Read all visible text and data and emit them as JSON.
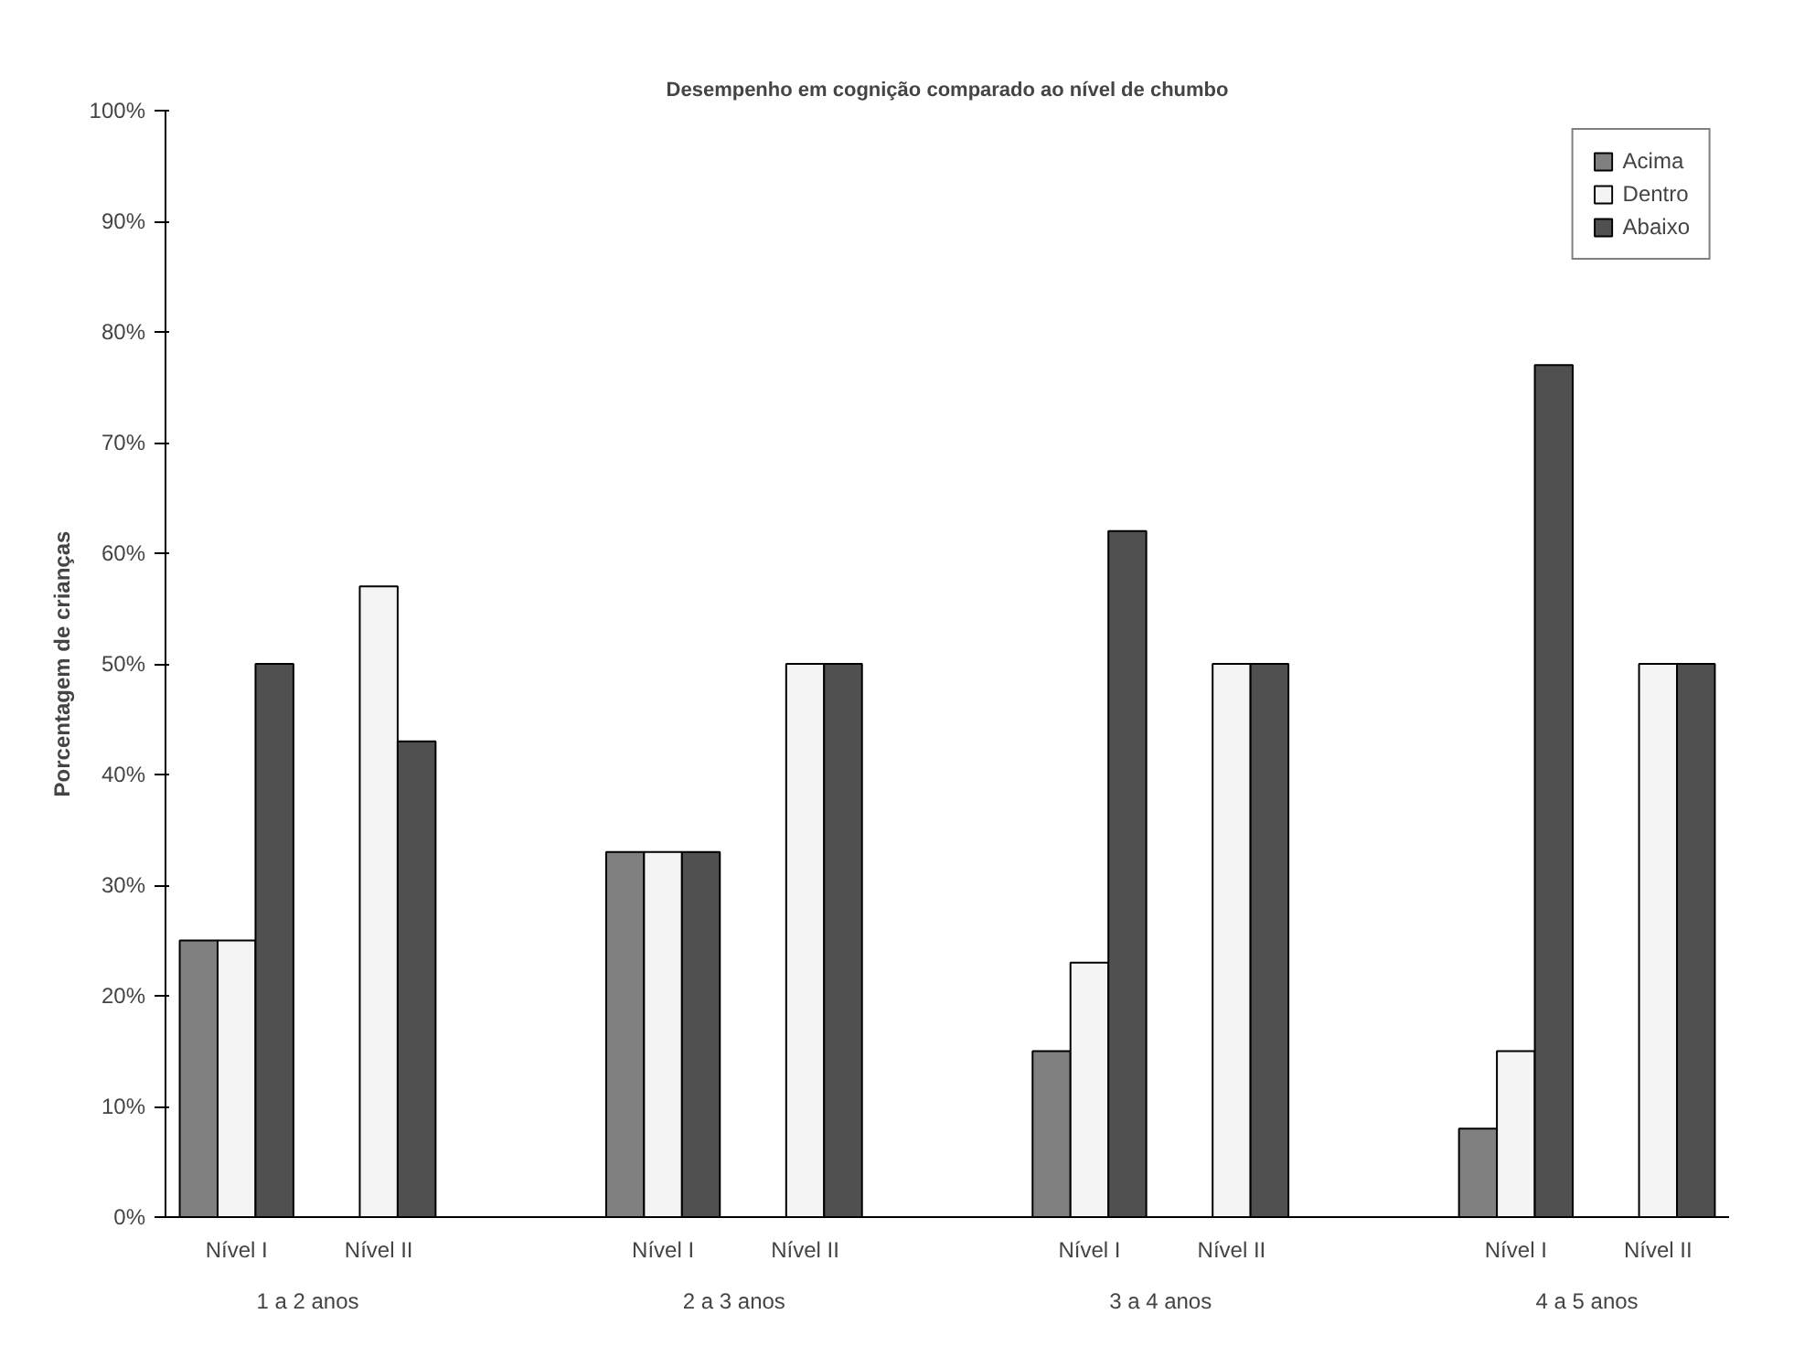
{
  "chart_data": {
    "type": "bar",
    "title": "Desempenho em cognição comparado ao nível de chumbo",
    "ylabel": "Porcentagem de crianças",
    "categories": [
      "Nível I",
      "Nível II",
      null,
      "Nível I",
      "Nível II",
      null,
      "Nível I",
      "Nível II",
      null,
      "Nível I",
      "Nível II"
    ],
    "series": [
      {
        "name": "Acima",
        "color": "#808080",
        "values": [
          25,
          0,
          null,
          33,
          0,
          null,
          15,
          0,
          null,
          8,
          0
        ]
      },
      {
        "name": "Dentro",
        "color": "#f4f4f4",
        "values": [
          25,
          57,
          null,
          33,
          50,
          null,
          23,
          50,
          null,
          15,
          50
        ]
      },
      {
        "name": "Abaixo",
        "color": "#505050",
        "values": [
          50,
          43,
          null,
          33,
          50,
          null,
          62,
          50,
          null,
          77,
          50
        ]
      }
    ],
    "annotations": [
      "1 a 2 anos",
      "2 a 3 anos",
      "3 a 4 anos",
      "4 a 5 anos"
    ],
    "ylim": [
      0,
      100
    ],
    "yticks": [
      {
        "value": 0,
        "label": "0%"
      },
      {
        "value": 10,
        "label": "10%"
      },
      {
        "value": 20,
        "label": "20%"
      },
      {
        "value": 30,
        "label": "30%"
      },
      {
        "value": 40,
        "label": "40%"
      },
      {
        "value": 50,
        "label": "50%"
      },
      {
        "value": 60,
        "label": "60%"
      },
      {
        "value": 70,
        "label": "70%"
      },
      {
        "value": 80,
        "label": "80%"
      },
      {
        "value": 90,
        "label": "90%"
      },
      {
        "value": 100,
        "label": "100%"
      }
    ],
    "legend": "top right",
    "grid": false
  }
}
